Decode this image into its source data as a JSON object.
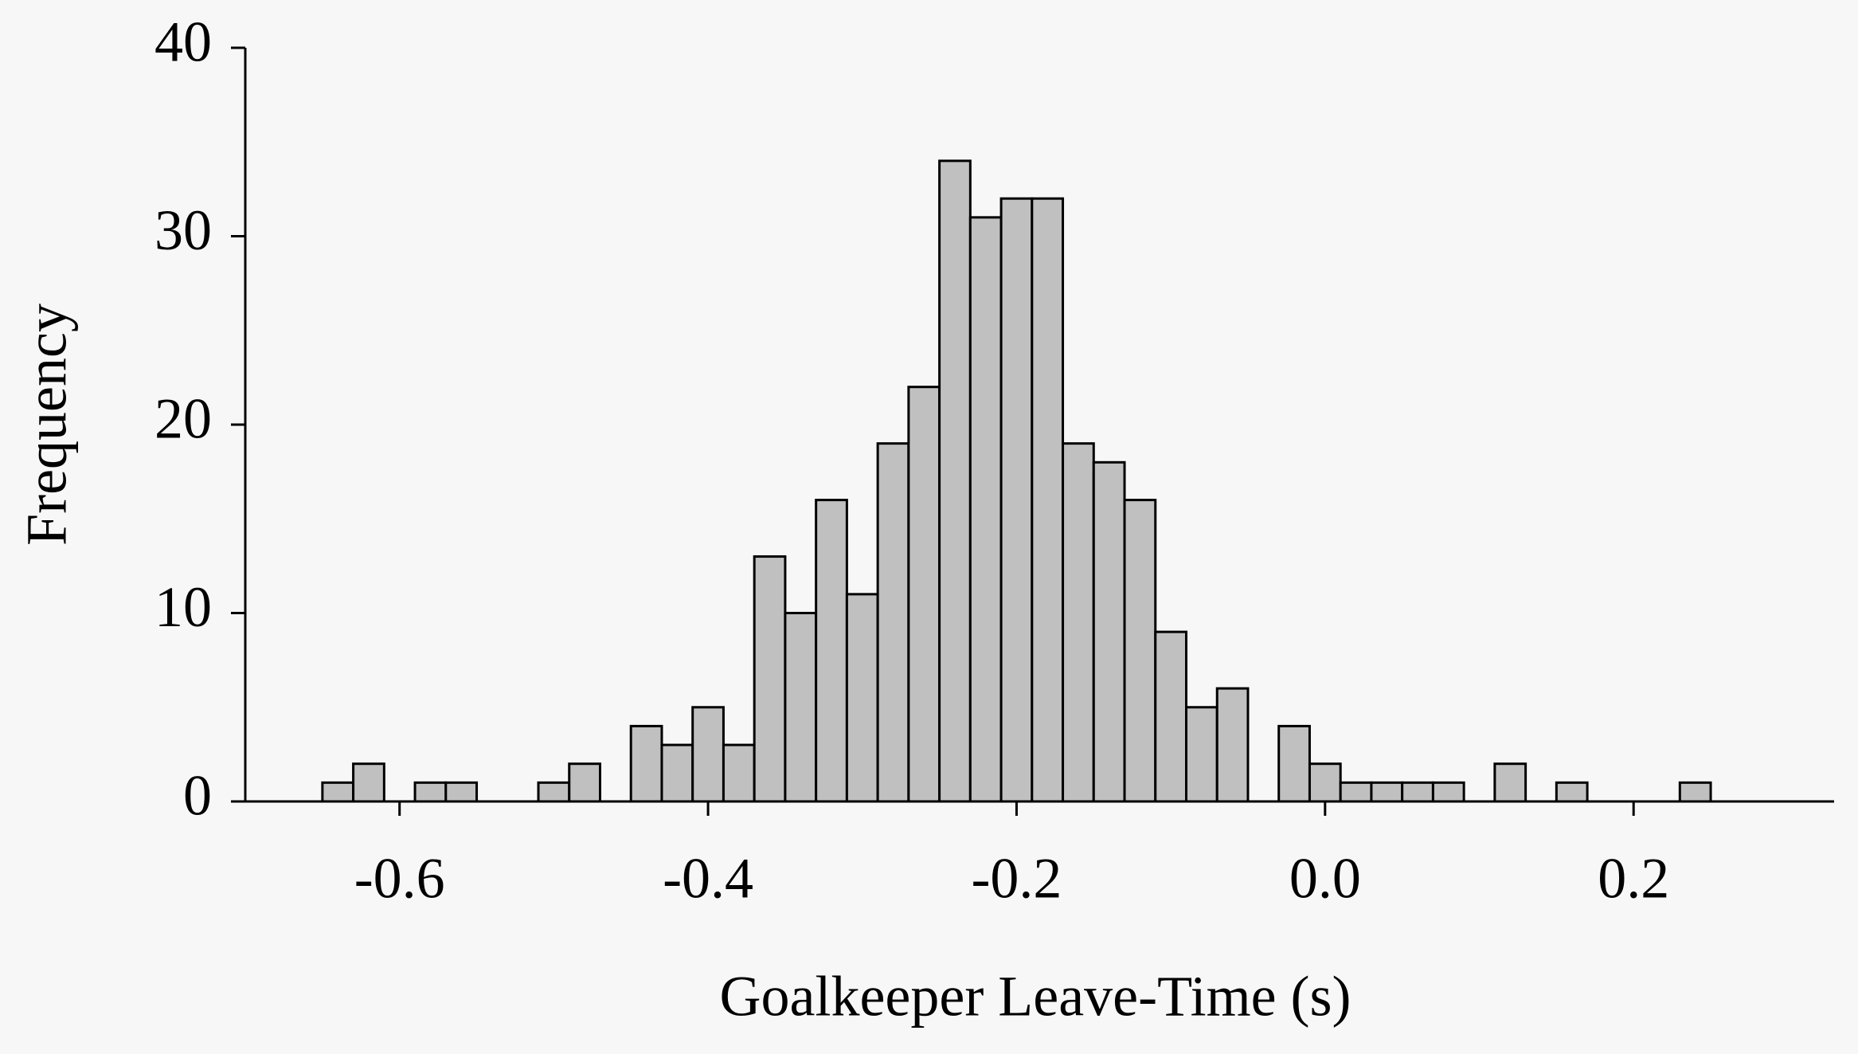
{
  "chart_data": {
    "type": "histogram",
    "x_label": "Goalkeeper Leave-Time (s)",
    "y_label": "Frequency",
    "bins": [
      -0.65,
      -0.63,
      -0.61,
      -0.59,
      -0.57,
      -0.55,
      -0.53,
      -0.51,
      -0.49,
      -0.47,
      -0.45,
      -0.43,
      -0.41,
      -0.39,
      -0.37,
      -0.35,
      -0.33,
      -0.31,
      -0.29,
      -0.27,
      -0.25,
      -0.23,
      -0.21,
      -0.19,
      -0.17,
      -0.15,
      -0.13,
      -0.11,
      -0.09,
      -0.07,
      -0.05,
      -0.03,
      -0.01,
      0.01,
      0.03,
      0.05,
      0.07,
      0.09,
      0.11,
      0.13,
      0.15,
      0.17,
      0.19,
      0.21,
      0.23,
      0.25
    ],
    "values": [
      1,
      2,
      0,
      1,
      1,
      0,
      0,
      1,
      2,
      0,
      4,
      3,
      5,
      3,
      13,
      10,
      16,
      11,
      19,
      22,
      34,
      31,
      32,
      32,
      19,
      18,
      16,
      9,
      5,
      6,
      0,
      4,
      2,
      1,
      1,
      1,
      1,
      0,
      2,
      0,
      1,
      0,
      0,
      0,
      1
    ],
    "color": "#c0c0c0",
    "xlim": [
      -0.7,
      0.33
    ],
    "xticks": [
      -0.6,
      -0.4,
      -0.2,
      {
        "value": 0,
        "label": "0.0"
      },
      0.2
    ],
    "ylim": [
      0,
      40
    ],
    "yticks": [
      0,
      10,
      20,
      30,
      40
    ]
  }
}
